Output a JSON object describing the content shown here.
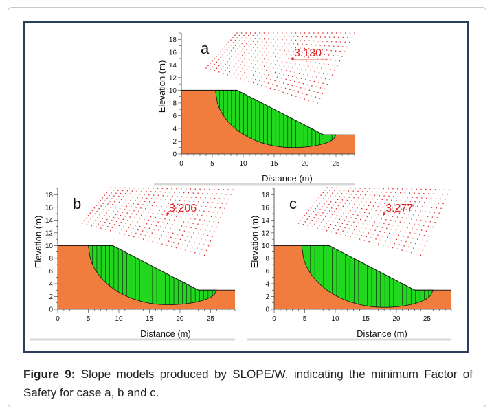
{
  "caption": {
    "figure_label": "Figure 9:",
    "text": " Slope models produced by SLOPE/W, indicating the minimum Factor of Safety for case a, b and c."
  },
  "colors": {
    "soil": "#f07c3e",
    "slip_mass": "#22d81f",
    "grid_points": "#e03030",
    "fos_text": "#e02020",
    "frame": "#2b3e5c"
  },
  "chart_data": [
    {
      "type": "other",
      "panel_label": "a",
      "fos": "3.130",
      "xlabel": "Distance (m)",
      "ylabel": "Elevation (m)",
      "xlim": [
        0,
        28
      ],
      "ylim": [
        0,
        19
      ],
      "x_ticks": [
        0,
        5,
        10,
        15,
        20,
        25
      ],
      "y_ticks": [
        0,
        2,
        4,
        6,
        8,
        10,
        12,
        14,
        16,
        18
      ],
      "slope_profile": [
        [
          0,
          10
        ],
        [
          4.5,
          10
        ],
        [
          9,
          10
        ],
        [
          23,
          3
        ],
        [
          28,
          3
        ]
      ],
      "slip_surface": {
        "entry": [
          5.5,
          10
        ],
        "exit": [
          25,
          3
        ],
        "lowest": [
          18,
          1
        ]
      },
      "critical_center": [
        18,
        15
      ],
      "grid_corners": [
        [
          4,
          13.5
        ],
        [
          9,
          19
        ],
        [
          28,
          19
        ],
        [
          22,
          8
        ]
      ]
    },
    {
      "type": "other",
      "panel_label": "b",
      "fos": "3.206",
      "xlabel": "Distance (m)",
      "ylabel": "Elevation (m)",
      "xlim": [
        0,
        29
      ],
      "ylim": [
        0,
        19
      ],
      "x_ticks": [
        0,
        5,
        10,
        15,
        20,
        25
      ],
      "y_ticks": [
        0,
        2,
        4,
        6,
        8,
        10,
        12,
        14,
        16,
        18
      ],
      "slope_profile": [
        [
          0,
          10
        ],
        [
          4.5,
          10
        ],
        [
          9,
          10
        ],
        [
          23,
          3
        ],
        [
          29,
          3
        ]
      ],
      "slip_surface": {
        "entry": [
          5,
          10
        ],
        "exit": [
          26,
          3
        ],
        "lowest": [
          18,
          0.7
        ]
      },
      "critical_center": [
        18,
        15
      ],
      "grid_corners": [
        [
          4,
          13.5
        ],
        [
          9,
          19.5
        ],
        [
          29,
          19.5
        ],
        [
          24,
          8.5
        ]
      ]
    },
    {
      "type": "other",
      "panel_label": "c",
      "fos": "3.277",
      "xlabel": "Distance (m)",
      "ylabel": "Elevation (m)",
      "xlim": [
        0,
        29
      ],
      "ylim": [
        0,
        19
      ],
      "x_ticks": [
        0,
        5,
        10,
        15,
        20,
        25
      ],
      "y_ticks": [
        0,
        2,
        4,
        6,
        8,
        10,
        12,
        14,
        16,
        18
      ],
      "slope_profile": [
        [
          0,
          10
        ],
        [
          4.5,
          10
        ],
        [
          9,
          10
        ],
        [
          23,
          3
        ],
        [
          29,
          3
        ]
      ],
      "slip_surface": {
        "entry": [
          4.5,
          10
        ],
        "exit": [
          26,
          3
        ],
        "lowest": [
          18,
          0.3
        ]
      },
      "critical_center": [
        18,
        15
      ],
      "grid_corners": [
        [
          4,
          13.5
        ],
        [
          9,
          19.5
        ],
        [
          29,
          19.5
        ],
        [
          24,
          8.5
        ]
      ]
    }
  ]
}
